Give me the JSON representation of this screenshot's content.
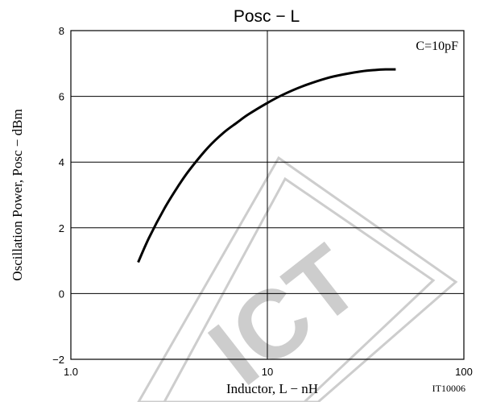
{
  "chart_data": {
    "type": "line",
    "title": "Posc  −  L",
    "xlabel": "Inductor, L  −  nH",
    "ylabel": "Oscillation Power, Posc  −  dBm",
    "x_scale": "log",
    "xlim": [
      1.0,
      100
    ],
    "ylim": [
      -2,
      8
    ],
    "x_ticks": [
      1.0,
      10,
      100
    ],
    "x_tick_labels": [
      "1.0",
      "10",
      "100"
    ],
    "y_ticks": [
      -2,
      0,
      2,
      4,
      6,
      8
    ],
    "y_tick_labels": [
      "−2",
      "0",
      "2",
      "4",
      "6",
      "8"
    ],
    "grid": true,
    "annotation": "C=10pF",
    "figure_id": "IT10006",
    "watermark_text": "ICT",
    "series": [
      {
        "x": [
          2.2,
          2.5,
          3.0,
          3.5,
          4.0,
          5.0,
          6.0,
          7.0,
          8.0,
          10.0,
          12.0,
          15.0,
          20.0,
          25.0,
          30.0,
          35.0,
          40.0,
          45.0
        ],
        "y": [
          0.95,
          1.7,
          2.6,
          3.25,
          3.75,
          4.45,
          4.9,
          5.2,
          5.45,
          5.8,
          6.05,
          6.3,
          6.55,
          6.68,
          6.76,
          6.8,
          6.82,
          6.82
        ]
      }
    ]
  }
}
